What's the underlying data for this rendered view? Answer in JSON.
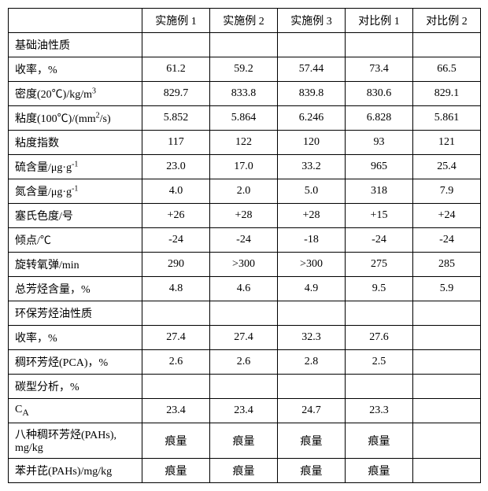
{
  "table": {
    "columns": [
      "",
      "实施例 1",
      "实施例 2",
      "实施例 3",
      "对比例 1",
      "对比例 2"
    ],
    "rows": [
      {
        "type": "section",
        "label": "基础油性质"
      },
      {
        "type": "data",
        "label": "收率，%",
        "values": [
          "61.2",
          "59.2",
          "57.44",
          "73.4",
          "66.5"
        ]
      },
      {
        "type": "data",
        "label_html": "密度(20℃)/kg/m<sup>3</sup>",
        "label": "密度(20℃)/kg/m3",
        "values": [
          "829.7",
          "833.8",
          "839.8",
          "830.6",
          "829.1"
        ]
      },
      {
        "type": "data",
        "label_html": "粘度(100℃)/(mm<sup>2</sup>/s)",
        "label": "粘度(100℃)/(mm2/s)",
        "values": [
          "5.852",
          "5.864",
          "6.246",
          "6.828",
          "5.861"
        ]
      },
      {
        "type": "data",
        "label": "粘度指数",
        "values": [
          "117",
          "122",
          "120",
          "93",
          "121"
        ]
      },
      {
        "type": "data",
        "label_html": "硫含量/μg·g<sup>-1</sup>",
        "label": "硫含量/μg·g-1",
        "values": [
          "23.0",
          "17.0",
          "33.2",
          "965",
          "25.4"
        ]
      },
      {
        "type": "data",
        "label_html": "氮含量/μg·g<sup>-1</sup>",
        "label": "氮含量/μg·g-1",
        "values": [
          "4.0",
          "2.0",
          "5.0",
          "318",
          "7.9"
        ]
      },
      {
        "type": "data",
        "label": "塞氏色度/号",
        "values": [
          "+26",
          "+28",
          "+28",
          "+15",
          "+24"
        ]
      },
      {
        "type": "data",
        "label": "倾点/℃",
        "values": [
          "-24",
          "-24",
          "-18",
          "-24",
          "-24"
        ]
      },
      {
        "type": "data",
        "label": "旋转氧弹/min",
        "values": [
          "290",
          ">300",
          ">300",
          "275",
          "285"
        ]
      },
      {
        "type": "data",
        "label": "总芳烃含量，%",
        "values": [
          "4.8",
          "4.6",
          "4.9",
          "9.5",
          "5.9"
        ]
      },
      {
        "type": "section",
        "label": "环保芳烃油性质"
      },
      {
        "type": "data",
        "label": "收率，%",
        "values": [
          "27.4",
          "27.4",
          "32.3",
          "27.6",
          ""
        ]
      },
      {
        "type": "data",
        "label": "稠环芳烃(PCA)，%",
        "values": [
          "2.6",
          "2.6",
          "2.8",
          "2.5",
          ""
        ]
      },
      {
        "type": "section",
        "label": "碳型分析，%"
      },
      {
        "type": "data",
        "label_html": "C<sub>A</sub>",
        "label": "CA",
        "values": [
          "23.4",
          "23.4",
          "24.7",
          "23.3",
          ""
        ]
      },
      {
        "type": "data",
        "label": "八种稠环芳烃(PAHs), mg/kg",
        "values": [
          "痕量",
          "痕量",
          "痕量",
          "痕量",
          ""
        ]
      },
      {
        "type": "data",
        "label": "苯并芘(PAHs)/mg/kg",
        "values": [
          "痕量",
          "痕量",
          "痕量",
          "痕量",
          ""
        ]
      }
    ]
  }
}
